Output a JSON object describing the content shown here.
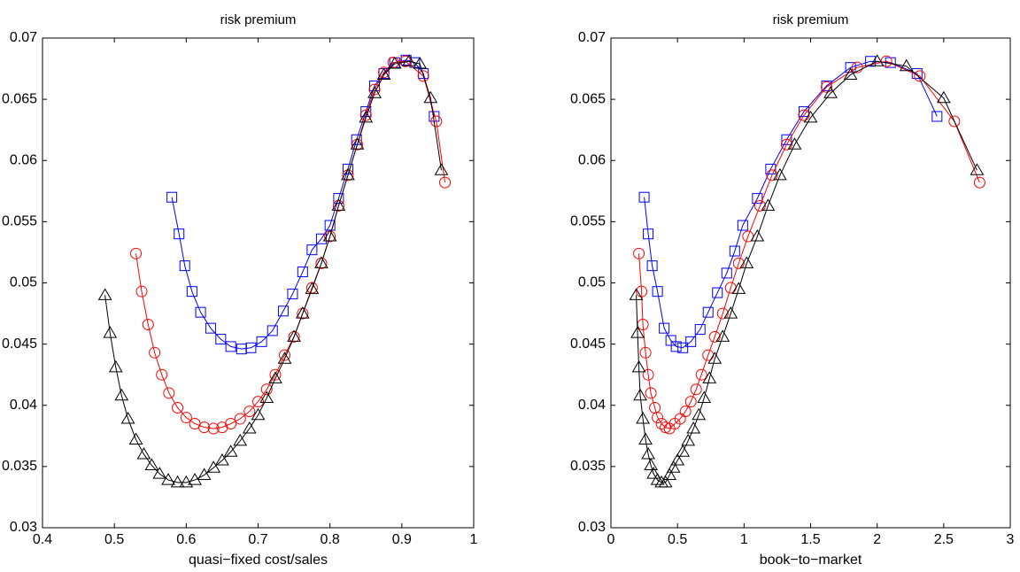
{
  "chart_data": [
    {
      "type": "line",
      "title": "risk premium",
      "xlabel": "quasi−fixed cost/sales",
      "xlim": [
        0.4,
        1
      ],
      "xticks": [
        0.4,
        0.5,
        0.6,
        0.7,
        0.8,
        0.9,
        1
      ],
      "ylim": [
        0.03,
        0.07
      ],
      "yticks": [
        0.03,
        0.035,
        0.04,
        0.045,
        0.05,
        0.055,
        0.06,
        0.065,
        0.07
      ],
      "series": [
        {
          "color": "#0000ff",
          "marker": "square",
          "x": [
            0.58,
            0.59,
            0.598,
            0.608,
            0.62,
            0.634,
            0.648,
            0.662,
            0.677,
            0.69,
            0.705,
            0.72,
            0.735,
            0.748,
            0.762,
            0.775,
            0.788,
            0.8,
            0.812,
            0.825,
            0.837,
            0.85,
            0.862,
            0.875,
            0.89,
            0.906,
            0.918,
            0.93,
            0.945
          ],
          "values": [
            0.057,
            0.054,
            0.0514,
            0.0493,
            0.0476,
            0.0463,
            0.0454,
            0.0448,
            0.0446,
            0.0447,
            0.0452,
            0.0461,
            0.0477,
            0.0491,
            0.0509,
            0.0527,
            0.0536,
            0.0547,
            0.0569,
            0.0593,
            0.0617,
            0.064,
            0.0661,
            0.0671,
            0.068,
            0.0682,
            0.068,
            0.0671,
            0.0636
          ]
        },
        {
          "color": "#ff0000",
          "marker": "circle",
          "x": [
            0.53,
            0.538,
            0.547,
            0.556,
            0.566,
            0.576,
            0.588,
            0.6,
            0.612,
            0.625,
            0.638,
            0.65,
            0.662,
            0.675,
            0.688,
            0.7,
            0.712,
            0.724,
            0.737,
            0.75,
            0.762,
            0.775,
            0.788,
            0.8,
            0.812,
            0.825,
            0.838,
            0.85,
            0.862,
            0.875,
            0.888,
            0.905,
            0.93,
            0.948,
            0.96
          ],
          "values": [
            0.0524,
            0.0493,
            0.0466,
            0.0443,
            0.0425,
            0.041,
            0.0398,
            0.039,
            0.0385,
            0.0382,
            0.0381,
            0.0382,
            0.0385,
            0.0389,
            0.0395,
            0.0403,
            0.0413,
            0.0425,
            0.0441,
            0.0456,
            0.0475,
            0.0496,
            0.0516,
            0.0538,
            0.0563,
            0.0588,
            0.0613,
            0.0637,
            0.0658,
            0.0672,
            0.068,
            0.0681,
            0.0669,
            0.0632,
            0.0582
          ]
        },
        {
          "color": "#000000",
          "marker": "triangle",
          "x": [
            0.487,
            0.494,
            0.502,
            0.51,
            0.519,
            0.53,
            0.541,
            0.552,
            0.563,
            0.575,
            0.588,
            0.6,
            0.612,
            0.625,
            0.638,
            0.65,
            0.662,
            0.675,
            0.688,
            0.7,
            0.712,
            0.724,
            0.737,
            0.75,
            0.762,
            0.775,
            0.788,
            0.8,
            0.812,
            0.825,
            0.838,
            0.85,
            0.862,
            0.875,
            0.89,
            0.91,
            0.925,
            0.94,
            0.955
          ],
          "values": [
            0.049,
            0.0459,
            0.0431,
            0.0408,
            0.0389,
            0.0372,
            0.036,
            0.0351,
            0.0344,
            0.0339,
            0.0337,
            0.0337,
            0.0339,
            0.0343,
            0.0349,
            0.0355,
            0.0362,
            0.0371,
            0.0381,
            0.0392,
            0.0406,
            0.0422,
            0.0438,
            0.0456,
            0.0475,
            0.0495,
            0.0516,
            0.0538,
            0.0563,
            0.0588,
            0.0613,
            0.0635,
            0.0655,
            0.067,
            0.0679,
            0.0681,
            0.0679,
            0.0651,
            0.0592
          ]
        }
      ]
    },
    {
      "type": "line",
      "title": "risk premium",
      "xlabel": "book−to−market",
      "xlim": [
        0,
        3
      ],
      "xticks": [
        0,
        0.5,
        1,
        1.5,
        2,
        2.5,
        3
      ],
      "ylim": [
        0.03,
        0.07
      ],
      "yticks": [
        0.03,
        0.035,
        0.04,
        0.045,
        0.05,
        0.055,
        0.06,
        0.065,
        0.07
      ],
      "series": [
        {
          "color": "#0000ff",
          "marker": "square",
          "x": [
            0.25,
            0.28,
            0.31,
            0.35,
            0.4,
            0.45,
            0.49,
            0.54,
            0.6,
            0.67,
            0.73,
            0.8,
            0.87,
            0.93,
            0.99,
            1.1,
            1.2,
            1.32,
            1.45,
            1.62,
            1.8,
            1.95,
            2.1,
            2.3,
            2.45
          ],
          "values": [
            0.057,
            0.054,
            0.0514,
            0.0493,
            0.0463,
            0.0453,
            0.0448,
            0.0447,
            0.0452,
            0.0462,
            0.0476,
            0.0492,
            0.0508,
            0.0526,
            0.0547,
            0.0569,
            0.0593,
            0.0617,
            0.064,
            0.0661,
            0.0676,
            0.0681,
            0.068,
            0.0671,
            0.0636
          ]
        },
        {
          "color": "#ff0000",
          "marker": "circle",
          "x": [
            0.21,
            0.23,
            0.24,
            0.26,
            0.28,
            0.3,
            0.33,
            0.35,
            0.38,
            0.41,
            0.44,
            0.48,
            0.52,
            0.56,
            0.6,
            0.64,
            0.68,
            0.73,
            0.78,
            0.84,
            0.9,
            0.96,
            1.03,
            1.12,
            1.21,
            1.32,
            1.45,
            1.62,
            1.85,
            2.07,
            2.32,
            2.58,
            2.77
          ],
          "values": [
            0.0524,
            0.0493,
            0.0466,
            0.0443,
            0.0425,
            0.041,
            0.0398,
            0.039,
            0.0385,
            0.0382,
            0.0381,
            0.0385,
            0.0389,
            0.0395,
            0.0403,
            0.0413,
            0.0425,
            0.0441,
            0.0456,
            0.0475,
            0.0496,
            0.0516,
            0.0538,
            0.0563,
            0.0588,
            0.0613,
            0.0637,
            0.066,
            0.0676,
            0.0681,
            0.0669,
            0.0632,
            0.0582
          ]
        },
        {
          "color": "#000000",
          "marker": "triangle",
          "x": [
            0.19,
            0.2,
            0.21,
            0.22,
            0.24,
            0.26,
            0.28,
            0.3,
            0.32,
            0.35,
            0.38,
            0.41,
            0.44,
            0.47,
            0.5,
            0.54,
            0.58,
            0.62,
            0.66,
            0.7,
            0.74,
            0.78,
            0.84,
            0.9,
            0.96,
            1.02,
            1.1,
            1.18,
            1.27,
            1.38,
            1.5,
            1.65,
            1.8,
            2.0,
            2.22,
            2.5,
            2.75
          ],
          "values": [
            0.049,
            0.0459,
            0.0431,
            0.0408,
            0.0389,
            0.0372,
            0.036,
            0.0351,
            0.0344,
            0.0339,
            0.0337,
            0.0337,
            0.0343,
            0.0349,
            0.0355,
            0.0362,
            0.0371,
            0.0381,
            0.0392,
            0.0406,
            0.0422,
            0.0438,
            0.0456,
            0.0475,
            0.0495,
            0.0516,
            0.0538,
            0.0563,
            0.0588,
            0.0613,
            0.0635,
            0.0655,
            0.067,
            0.0681,
            0.0677,
            0.0651,
            0.0592
          ]
        }
      ]
    }
  ]
}
